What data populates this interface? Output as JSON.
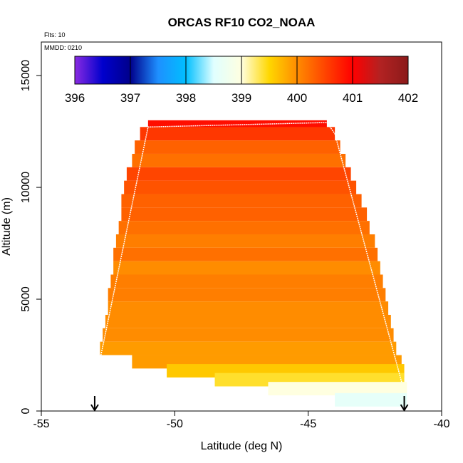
{
  "chart_data": {
    "type": "heatmap",
    "title": "ORCAS RF10 CO2_NOAA",
    "flights_note": "Flts: 10",
    "date_note": "MMDD: 0210",
    "xlabel": "Latitude (deg N)",
    "ylabel": "Altitude (m)",
    "xlim": [
      -55,
      -40
    ],
    "ylim": [
      0,
      16500
    ],
    "x_ticks": [
      -55,
      -50,
      -45,
      -40
    ],
    "x_tick_labels": [
      "-55",
      "-50",
      "-45",
      "-40"
    ],
    "y_ticks": [
      0,
      5000,
      10000,
      15000
    ],
    "y_tick_labels": [
      "0",
      "5000",
      "10000",
      "15000"
    ],
    "colorbar": {
      "min": 396,
      "max": 402,
      "ticks": [
        396,
        397,
        398,
        399,
        400,
        401,
        402
      ],
      "tick_labels": [
        "396",
        "397",
        "398",
        "399",
        "400",
        "401",
        "402"
      ],
      "colors": [
        "#8a2be2",
        "#0000cd",
        "#00008b",
        "#1e90ff",
        "#00bfff",
        "#e0ffff",
        "#ffffe0",
        "#ffd700",
        "#ff8c00",
        "#ff4500",
        "#ff0000",
        "#b22222",
        "#8b1a1a"
      ]
    },
    "profile_bands": [
      {
        "alt": 12800,
        "lat_min": -51.0,
        "lat_max": -44.3,
        "value": 400.9
      },
      {
        "alt": 12400,
        "lat_min": -51.3,
        "lat_max": -44.0,
        "value": 400.6
      },
      {
        "alt": 11800,
        "lat_min": -51.5,
        "lat_max": -43.8,
        "value": 400.3
      },
      {
        "alt": 11200,
        "lat_min": -51.6,
        "lat_max": -43.6,
        "value": 400.2
      },
      {
        "alt": 10600,
        "lat_min": -51.8,
        "lat_max": -43.4,
        "value": 400.5
      },
      {
        "alt": 10000,
        "lat_min": -51.9,
        "lat_max": -43.2,
        "value": 400.4
      },
      {
        "alt": 9400,
        "lat_min": -52.0,
        "lat_max": -43.0,
        "value": 400.3
      },
      {
        "alt": 8800,
        "lat_min": -52.0,
        "lat_max": -42.8,
        "value": 400.3
      },
      {
        "alt": 8200,
        "lat_min": -52.1,
        "lat_max": -42.7,
        "value": 400.2
      },
      {
        "alt": 7600,
        "lat_min": -52.2,
        "lat_max": -42.5,
        "value": 400.1
      },
      {
        "alt": 7000,
        "lat_min": -52.3,
        "lat_max": -42.4,
        "value": 400.2
      },
      {
        "alt": 6400,
        "lat_min": -52.3,
        "lat_max": -42.3,
        "value": 400.0
      },
      {
        "alt": 5800,
        "lat_min": -52.4,
        "lat_max": -42.2,
        "value": 400.1
      },
      {
        "alt": 5200,
        "lat_min": -52.5,
        "lat_max": -42.1,
        "value": 400.1
      },
      {
        "alt": 4600,
        "lat_min": -52.5,
        "lat_max": -42.0,
        "value": 400.0
      },
      {
        "alt": 4000,
        "lat_min": -52.6,
        "lat_max": -41.9,
        "value": 400.0
      },
      {
        "alt": 3400,
        "lat_min": -52.7,
        "lat_max": -41.8,
        "value": 400.0
      },
      {
        "alt": 2800,
        "lat_min": -52.8,
        "lat_max": -41.7,
        "value": 399.9
      },
      {
        "alt": 2200,
        "lat_min": -51.6,
        "lat_max": -41.5,
        "value": 399.9
      },
      {
        "alt": 1800,
        "lat_min": -50.3,
        "lat_max": -41.4,
        "value": 399.6
      },
      {
        "alt": 1400,
        "lat_min": -48.5,
        "lat_max": -41.4,
        "value": 399.4
      },
      {
        "alt": 1000,
        "lat_min": -46.5,
        "lat_max": -41.3,
        "value": 399.0
      },
      {
        "alt": 500,
        "lat_min": -44.0,
        "lat_max": -41.3,
        "value": 398.6
      }
    ],
    "flight_track": {
      "lat": [
        -52.8,
        -51.0,
        -44.3,
        -44.0,
        -43.8,
        -41.5
      ],
      "alt": [
        2300,
        12700,
        12900,
        12400,
        11500,
        1300
      ]
    },
    "markers": [
      {
        "lat": -53.0,
        "label": "takeoff-arrow"
      },
      {
        "lat": -41.4,
        "label": "landing-arrow"
      }
    ]
  }
}
